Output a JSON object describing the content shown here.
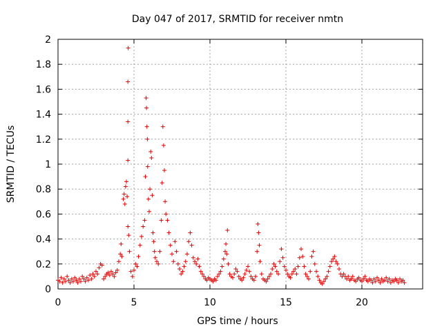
{
  "chart_data": {
    "type": "scatter",
    "title": "Day 047 of 2017, SRMTID for receiver nmtn",
    "xlabel": "GPS time / hours",
    "ylabel": "SRMTID / TECUs",
    "xlim": [
      0,
      24
    ],
    "ylim": [
      0,
      2
    ],
    "xticks": [
      "0",
      "5",
      "10",
      "15",
      "20"
    ],
    "yticks": [
      "0",
      "0.2",
      "0.4",
      "0.6",
      "0.8",
      "1",
      "1.2",
      "1.4",
      "1.6",
      "1.8",
      "2"
    ],
    "grid": true,
    "marker": "+",
    "color": "#e00000",
    "series": [
      {
        "name": "SRMTID",
        "points": [
          [
            0.0,
            0.07
          ],
          [
            0.1,
            0.06
          ],
          [
            0.2,
            0.09
          ],
          [
            0.3,
            0.05
          ],
          [
            0.4,
            0.08
          ],
          [
            0.5,
            0.06
          ],
          [
            0.6,
            0.1
          ],
          [
            0.7,
            0.07
          ],
          [
            0.8,
            0.05
          ],
          [
            0.9,
            0.08
          ],
          [
            1.0,
            0.06
          ],
          [
            1.1,
            0.09
          ],
          [
            1.2,
            0.07
          ],
          [
            1.3,
            0.05
          ],
          [
            1.4,
            0.08
          ],
          [
            1.5,
            0.06
          ],
          [
            1.6,
            0.1
          ],
          [
            1.7,
            0.08
          ],
          [
            1.8,
            0.06
          ],
          [
            1.9,
            0.09
          ],
          [
            2.0,
            0.07
          ],
          [
            2.1,
            0.11
          ],
          [
            2.2,
            0.08
          ],
          [
            2.3,
            0.12
          ],
          [
            2.4,
            0.1
          ],
          [
            2.5,
            0.14
          ],
          [
            2.6,
            0.12
          ],
          [
            2.7,
            0.17
          ],
          [
            2.8,
            0.2
          ],
          [
            2.9,
            0.19
          ],
          [
            3.0,
            0.08
          ],
          [
            3.1,
            0.1
          ],
          [
            3.2,
            0.12
          ],
          [
            3.3,
            0.13
          ],
          [
            3.4,
            0.11
          ],
          [
            3.5,
            0.14
          ],
          [
            3.6,
            0.12
          ],
          [
            3.7,
            0.1
          ],
          [
            3.8,
            0.13
          ],
          [
            3.9,
            0.15
          ],
          [
            4.0,
            0.22
          ],
          [
            4.1,
            0.28
          ],
          [
            4.15,
            0.36
          ],
          [
            4.2,
            0.26
          ],
          [
            4.3,
            0.72
          ],
          [
            4.35,
            0.76
          ],
          [
            4.4,
            0.68
          ],
          [
            4.45,
            0.82
          ],
          [
            4.5,
            0.86
          ],
          [
            4.55,
            0.74
          ],
          [
            4.6,
            0.5
          ],
          [
            4.62,
            1.93
          ],
          [
            4.6,
            1.66
          ],
          [
            4.6,
            1.34
          ],
          [
            4.6,
            1.03
          ],
          [
            4.65,
            0.43
          ],
          [
            4.7,
            0.3
          ],
          [
            4.8,
            0.14
          ],
          [
            4.9,
            0.1
          ],
          [
            5.0,
            0.15
          ],
          [
            5.1,
            0.2
          ],
          [
            5.2,
            0.18
          ],
          [
            5.3,
            0.26
          ],
          [
            5.4,
            0.35
          ],
          [
            5.5,
            0.42
          ],
          [
            5.6,
            0.5
          ],
          [
            5.7,
            0.55
          ],
          [
            5.75,
            0.9
          ],
          [
            5.8,
            1.53
          ],
          [
            5.82,
            1.45
          ],
          [
            5.85,
            1.3
          ],
          [
            5.88,
            1.2
          ],
          [
            5.9,
            0.98
          ],
          [
            5.95,
            0.72
          ],
          [
            6.0,
            0.62
          ],
          [
            6.05,
            0.8
          ],
          [
            6.1,
            1.1
          ],
          [
            6.15,
            1.05
          ],
          [
            6.2,
            0.75
          ],
          [
            6.25,
            0.45
          ],
          [
            6.3,
            0.38
          ],
          [
            6.35,
            0.3
          ],
          [
            6.4,
            0.25
          ],
          [
            6.5,
            0.22
          ],
          [
            6.6,
            0.2
          ],
          [
            6.7,
            0.3
          ],
          [
            6.8,
            0.55
          ],
          [
            6.85,
            0.85
          ],
          [
            6.9,
            1.3
          ],
          [
            6.95,
            1.15
          ],
          [
            7.0,
            0.95
          ],
          [
            7.05,
            0.7
          ],
          [
            7.1,
            0.6
          ],
          [
            7.2,
            0.55
          ],
          [
            7.3,
            0.45
          ],
          [
            7.4,
            0.35
          ],
          [
            7.5,
            0.28
          ],
          [
            7.6,
            0.22
          ],
          [
            7.7,
            0.38
          ],
          [
            7.8,
            0.3
          ],
          [
            7.9,
            0.2
          ],
          [
            8.0,
            0.16
          ],
          [
            8.1,
            0.12
          ],
          [
            8.2,
            0.14
          ],
          [
            8.3,
            0.18
          ],
          [
            8.4,
            0.22
          ],
          [
            8.5,
            0.28
          ],
          [
            8.6,
            0.38
          ],
          [
            8.7,
            0.45
          ],
          [
            8.8,
            0.35
          ],
          [
            8.9,
            0.25
          ],
          [
            9.0,
            0.22
          ],
          [
            9.1,
            0.2
          ],
          [
            9.2,
            0.24
          ],
          [
            9.3,
            0.18
          ],
          [
            9.4,
            0.14
          ],
          [
            9.5,
            0.12
          ],
          [
            9.6,
            0.1
          ],
          [
            9.7,
            0.08
          ],
          [
            9.8,
            0.07
          ],
          [
            9.9,
            0.09
          ],
          [
            10.0,
            0.08
          ],
          [
            10.1,
            0.07
          ],
          [
            10.2,
            0.06
          ],
          [
            10.3,
            0.08
          ],
          [
            10.4,
            0.07
          ],
          [
            10.5,
            0.1
          ],
          [
            10.6,
            0.12
          ],
          [
            10.7,
            0.14
          ],
          [
            10.8,
            0.18
          ],
          [
            10.9,
            0.24
          ],
          [
            11.0,
            0.3
          ],
          [
            11.05,
            0.36
          ],
          [
            11.1,
            0.28
          ],
          [
            11.15,
            0.47
          ],
          [
            11.2,
            0.2
          ],
          [
            11.3,
            0.12
          ],
          [
            11.4,
            0.1
          ],
          [
            11.5,
            0.09
          ],
          [
            11.6,
            0.12
          ],
          [
            11.7,
            0.16
          ],
          [
            11.8,
            0.14
          ],
          [
            11.9,
            0.1
          ],
          [
            12.0,
            0.08
          ],
          [
            12.1,
            0.07
          ],
          [
            12.2,
            0.09
          ],
          [
            12.3,
            0.12
          ],
          [
            12.4,
            0.15
          ],
          [
            12.5,
            0.18
          ],
          [
            12.6,
            0.14
          ],
          [
            12.7,
            0.1
          ],
          [
            12.8,
            0.08
          ],
          [
            12.9,
            0.07
          ],
          [
            13.0,
            0.1
          ],
          [
            13.1,
            0.3
          ],
          [
            13.15,
            0.52
          ],
          [
            13.2,
            0.45
          ],
          [
            13.25,
            0.35
          ],
          [
            13.3,
            0.22
          ],
          [
            13.4,
            0.12
          ],
          [
            13.5,
            0.08
          ],
          [
            13.6,
            0.07
          ],
          [
            13.7,
            0.06
          ],
          [
            13.8,
            0.08
          ],
          [
            13.9,
            0.1
          ],
          [
            14.0,
            0.12
          ],
          [
            14.1,
            0.16
          ],
          [
            14.2,
            0.2
          ],
          [
            14.3,
            0.18
          ],
          [
            14.4,
            0.14
          ],
          [
            14.5,
            0.12
          ],
          [
            14.6,
            0.22
          ],
          [
            14.7,
            0.32
          ],
          [
            14.8,
            0.25
          ],
          [
            14.9,
            0.18
          ],
          [
            15.0,
            0.15
          ],
          [
            15.1,
            0.12
          ],
          [
            15.2,
            0.1
          ],
          [
            15.3,
            0.09
          ],
          [
            15.4,
            0.12
          ],
          [
            15.5,
            0.14
          ],
          [
            15.6,
            0.16
          ],
          [
            15.7,
            0.12
          ],
          [
            15.8,
            0.18
          ],
          [
            15.9,
            0.25
          ],
          [
            16.0,
            0.32
          ],
          [
            16.1,
            0.26
          ],
          [
            16.2,
            0.18
          ],
          [
            16.3,
            0.12
          ],
          [
            16.4,
            0.1
          ],
          [
            16.5,
            0.08
          ],
          [
            16.6,
            0.14
          ],
          [
            16.7,
            0.26
          ],
          [
            16.8,
            0.3
          ],
          [
            16.9,
            0.2
          ],
          [
            17.0,
            0.14
          ],
          [
            17.1,
            0.1
          ],
          [
            17.2,
            0.07
          ],
          [
            17.3,
            0.05
          ],
          [
            17.4,
            0.04
          ],
          [
            17.5,
            0.06
          ],
          [
            17.6,
            0.08
          ],
          [
            17.7,
            0.1
          ],
          [
            17.8,
            0.14
          ],
          [
            17.9,
            0.18
          ],
          [
            18.0,
            0.22
          ],
          [
            18.1,
            0.24
          ],
          [
            18.2,
            0.26
          ],
          [
            18.3,
            0.22
          ],
          [
            18.4,
            0.2
          ],
          [
            18.5,
            0.16
          ],
          [
            18.6,
            0.12
          ],
          [
            18.7,
            0.1
          ],
          [
            18.8,
            0.12
          ],
          [
            18.9,
            0.1
          ],
          [
            19.0,
            0.08
          ],
          [
            19.1,
            0.1
          ],
          [
            19.2,
            0.07
          ],
          [
            19.3,
            0.08
          ],
          [
            19.4,
            0.1
          ],
          [
            19.5,
            0.07
          ],
          [
            19.6,
            0.06
          ],
          [
            19.7,
            0.08
          ],
          [
            19.8,
            0.09
          ],
          [
            19.9,
            0.07
          ],
          [
            20.0,
            0.06
          ],
          [
            20.1,
            0.08
          ],
          [
            20.2,
            0.1
          ],
          [
            20.3,
            0.07
          ],
          [
            20.4,
            0.06
          ],
          [
            20.5,
            0.08
          ],
          [
            20.6,
            0.07
          ],
          [
            20.7,
            0.05
          ],
          [
            20.8,
            0.08
          ],
          [
            20.9,
            0.06
          ],
          [
            21.0,
            0.09
          ],
          [
            21.1,
            0.07
          ],
          [
            21.2,
            0.05
          ],
          [
            21.3,
            0.08
          ],
          [
            21.4,
            0.06
          ],
          [
            21.5,
            0.07
          ],
          [
            21.6,
            0.09
          ],
          [
            21.7,
            0.06
          ],
          [
            21.8,
            0.08
          ],
          [
            21.9,
            0.05
          ],
          [
            22.0,
            0.07
          ],
          [
            22.1,
            0.06
          ],
          [
            22.2,
            0.08
          ],
          [
            22.3,
            0.07
          ],
          [
            22.4,
            0.05
          ],
          [
            22.5,
            0.08
          ],
          [
            22.6,
            0.06
          ],
          [
            22.7,
            0.07
          ],
          [
            22.8,
            0.05
          ]
        ]
      }
    ]
  }
}
